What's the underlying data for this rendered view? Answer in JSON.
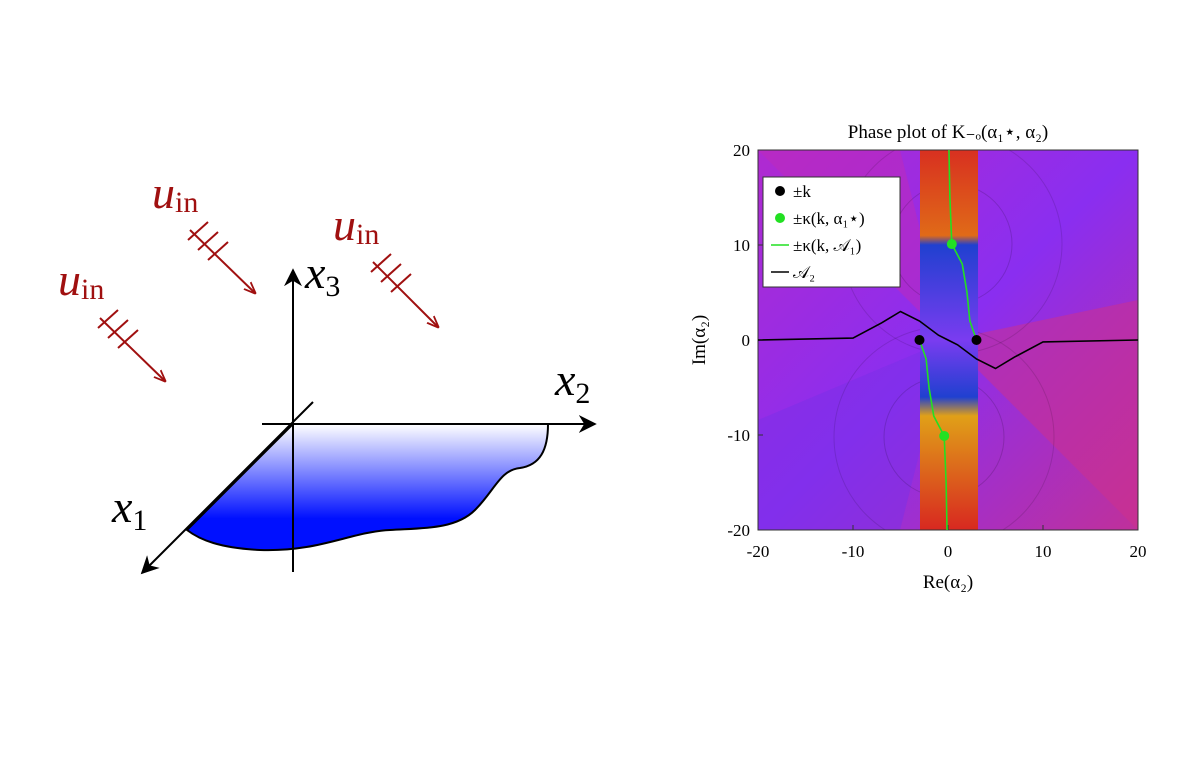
{
  "diagram": {
    "incident_waves": [
      {
        "symbol": "u",
        "subscript": "in"
      },
      {
        "symbol": "u",
        "subscript": "in"
      },
      {
        "symbol": "u",
        "subscript": "in"
      }
    ],
    "axes": [
      {
        "symbol": "x",
        "subscript": "1"
      },
      {
        "symbol": "x",
        "subscript": "2"
      },
      {
        "symbol": "x",
        "subscript": "3"
      }
    ]
  },
  "chart_data": {
    "type": "scatter",
    "title": "Phase plot of K₋ₒ(α₁⋆, α₂)",
    "xlabel": "Re(α₂)",
    "ylabel": "Im(α₂)",
    "xlim": [
      -20,
      20
    ],
    "ylim": [
      -20,
      20
    ],
    "xticks": [
      -20,
      -10,
      0,
      10,
      20
    ],
    "yticks": [
      -20,
      -10,
      0,
      10,
      20
    ],
    "legend": "upper left",
    "series": [
      {
        "name": "±k",
        "mode": "points",
        "color": "#000000",
        "x": [
          -3,
          3
        ],
        "values": [
          0,
          0
        ]
      },
      {
        "name": "±κ(k, α₁⋆)",
        "mode": "points",
        "color": "#22e022",
        "x": [
          0.4,
          -0.4
        ],
        "values": [
          10.1,
          -10.1
        ]
      },
      {
        "name": "±κ(k, 𝒜₁)",
        "mode": "line",
        "color": "#22e022",
        "x": [
          0.1,
          0.2,
          0.4,
          1.5,
          2,
          2.3,
          3,
          null,
          -3,
          -2.3,
          -2,
          -1.5,
          -0.4,
          -0.2,
          -0.1
        ],
        "values": [
          20,
          15,
          10.1,
          8,
          5,
          2,
          0,
          null,
          0,
          -2,
          -5,
          -8,
          -10.1,
          -15,
          -20
        ]
      },
      {
        "name": "𝒜₂",
        "mode": "line",
        "color": "#000000",
        "x": [
          -20,
          -10,
          -7,
          -5,
          -3,
          -1,
          0,
          1,
          3,
          5,
          7,
          10,
          20
        ],
        "values": [
          0,
          0.2,
          1.8,
          3,
          2,
          0.5,
          0,
          -0.5,
          -2,
          -3,
          -1.8,
          -0.2,
          0
        ]
      }
    ]
  }
}
